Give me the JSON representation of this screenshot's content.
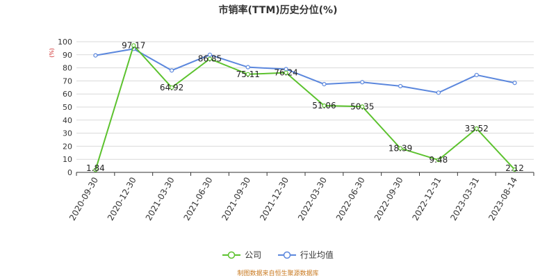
{
  "chart_data": {
    "type": "line",
    "title": "市销率(TTM)历史分位(%)",
    "ylabel": "(%)",
    "ylim": [
      0,
      100
    ],
    "yticks": [
      0,
      10,
      20,
      30,
      40,
      50,
      60,
      70,
      80,
      90,
      100
    ],
    "categories": [
      "2020-09-30",
      "2020-12-30",
      "2021-03-30",
      "2021-06-30",
      "2021-09-30",
      "2021-12-30",
      "2022-03-30",
      "2022-06-30",
      "2022-09-30",
      "2022-12-31",
      "2023-03-31",
      "2023-08-14"
    ],
    "grid": true,
    "legend_position": "bottom",
    "series": [
      {
        "name": "公司",
        "color": "#5cc22e",
        "values": [
          1.84,
          97.17,
          64.92,
          86.85,
          75.11,
          76.24,
          51.06,
          50.35,
          18.39,
          9.48,
          33.52,
          2.12
        ],
        "labels": [
          "1.84",
          "97.17",
          "64.92",
          "86.85",
          "75.11",
          "76.24",
          "51.06",
          "50.35",
          "18.39",
          "9.48",
          "33.52",
          "2.12"
        ]
      },
      {
        "name": "行业均值",
        "color": "#5b87dd",
        "values": [
          89.5,
          94.5,
          78.0,
          90.0,
          80.5,
          79.0,
          67.5,
          69.0,
          66.0,
          61.0,
          74.5,
          68.5
        ]
      }
    ]
  },
  "source_note": "制图数据来自恒生聚源数据库"
}
